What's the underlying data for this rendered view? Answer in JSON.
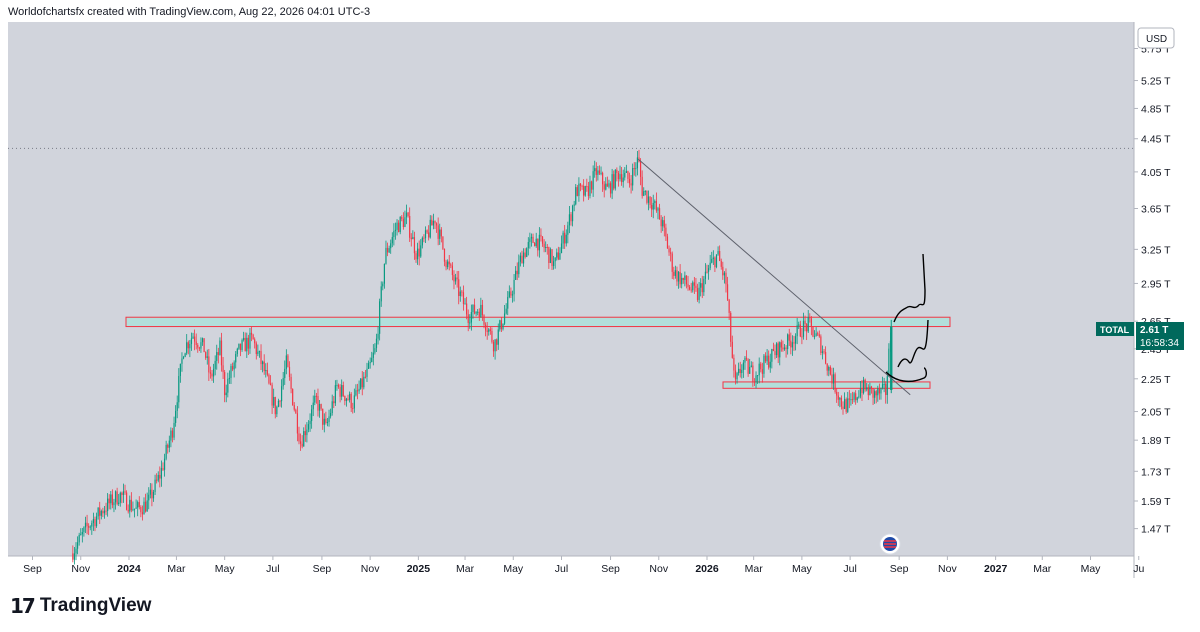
{
  "header": {
    "attribution": "Worldofchartsfx created with TradingView.com, Aug 22, 2026 04:01 UTC-3"
  },
  "brand": {
    "name": "TradingView",
    "mark": "17"
  },
  "colors": {
    "up": "#089981",
    "down": "#f23645",
    "background": "#d1d4dc",
    "zone_fill": "#b2dfdb",
    "zone_border": "#f23645",
    "trendline": "#5d606b",
    "label_bg": "#00695c"
  },
  "chart_data": {
    "type": "candlestick",
    "symbol": "TOTAL",
    "currency": "USD",
    "last_value": "2.61 T",
    "countdown": "16:58:34",
    "y_axis": {
      "scale": "log",
      "ticks": [
        "5.75 T",
        "5.25 T",
        "4.85 T",
        "4.45 T",
        "4.05 T",
        "3.65 T",
        "3.25 T",
        "2.95 T",
        "2.65 T",
        "2.45 T",
        "2.25 T",
        "2.05 T",
        "1.89 T",
        "1.73 T",
        "1.59 T",
        "1.47 T"
      ],
      "range_trillions": [
        1.36,
        6.2
      ]
    },
    "x_axis": {
      "ticks": [
        "Sep",
        "Nov",
        "2024",
        "Mar",
        "May",
        "Jul",
        "Sep",
        "Nov",
        "2025",
        "Mar",
        "May",
        "Jul",
        "Sep",
        "Nov",
        "2026",
        "Mar",
        "May",
        "Jul",
        "Sep",
        "Nov",
        "2027",
        "Mar",
        "May",
        "Ju"
      ],
      "bold": [
        "2024",
        "2025",
        "2026",
        "2027"
      ]
    },
    "price_path_trillions": [
      [
        "2023-10-20",
        1.37
      ],
      [
        "2023-11-10",
        1.48
      ],
      [
        "2023-12-01",
        1.56
      ],
      [
        "2023-12-20",
        1.62
      ],
      [
        "2024-01-10",
        1.55
      ],
      [
        "2024-01-25",
        1.58
      ],
      [
        "2024-02-10",
        1.72
      ],
      [
        "2024-02-25",
        1.95
      ],
      [
        "2024-03-10",
        2.45
      ],
      [
        "2024-03-22",
        2.55
      ],
      [
        "2024-04-05",
        2.45
      ],
      [
        "2024-04-13",
        2.25
      ],
      [
        "2024-04-25",
        2.45
      ],
      [
        "2024-05-01",
        2.18
      ],
      [
        "2024-05-20",
        2.45
      ],
      [
        "2024-06-05",
        2.52
      ],
      [
        "2024-06-20",
        2.3
      ],
      [
        "2024-07-05",
        2.05
      ],
      [
        "2024-07-18",
        2.35
      ],
      [
        "2024-08-05",
        1.88
      ],
      [
        "2024-08-25",
        2.12
      ],
      [
        "2024-09-06",
        1.95
      ],
      [
        "2024-09-20",
        2.2
      ],
      [
        "2024-10-10",
        2.1
      ],
      [
        "2024-10-30",
        2.3
      ],
      [
        "2024-11-08",
        2.45
      ],
      [
        "2024-11-20",
        3.2
      ],
      [
        "2024-12-05",
        3.48
      ],
      [
        "2024-12-17",
        3.55
      ],
      [
        "2024-12-30",
        3.2
      ],
      [
        "2025-01-10",
        3.35
      ],
      [
        "2025-01-22",
        3.55
      ],
      [
        "2025-02-05",
        3.15
      ],
      [
        "2025-02-20",
        2.9
      ],
      [
        "2025-03-05",
        2.7
      ],
      [
        "2025-03-20",
        2.75
      ],
      [
        "2025-04-07",
        2.48
      ],
      [
        "2025-04-25",
        2.8
      ],
      [
        "2025-05-12",
        3.2
      ],
      [
        "2025-05-28",
        3.35
      ],
      [
        "2025-06-12",
        3.25
      ],
      [
        "2025-06-22",
        3.1
      ],
      [
        "2025-07-10",
        3.5
      ],
      [
        "2025-07-20",
        3.85
      ],
      [
        "2025-08-01",
        3.8
      ],
      [
        "2025-08-14",
        4.05
      ],
      [
        "2025-08-28",
        3.85
      ],
      [
        "2025-09-12",
        4.05
      ],
      [
        "2025-09-25",
        3.95
      ],
      [
        "2025-10-06",
        4.2
      ],
      [
        "2025-10-11",
        3.85
      ],
      [
        "2025-10-25",
        3.7
      ],
      [
        "2025-11-05",
        3.5
      ],
      [
        "2025-11-20",
        3.05
      ],
      [
        "2025-12-05",
        2.95
      ],
      [
        "2025-12-20",
        2.85
      ],
      [
        "2026-01-05",
        3.1
      ],
      [
        "2026-01-14",
        3.2
      ],
      [
        "2026-01-25",
        2.95
      ],
      [
        "2026-02-05",
        2.2
      ],
      [
        "2026-02-15",
        2.35
      ],
      [
        "2026-03-01",
        2.28
      ],
      [
        "2026-03-15",
        2.35
      ],
      [
        "2026-04-01",
        2.45
      ],
      [
        "2026-04-15",
        2.5
      ],
      [
        "2026-05-01",
        2.6
      ],
      [
        "2026-05-10",
        2.62
      ],
      [
        "2026-05-25",
        2.48
      ],
      [
        "2026-06-05",
        2.3
      ],
      [
        "2026-06-20",
        2.1
      ],
      [
        "2026-07-01",
        2.08
      ],
      [
        "2026-07-15",
        2.2
      ],
      [
        "2026-08-01",
        2.15
      ],
      [
        "2026-08-15",
        2.17
      ],
      [
        "2026-08-22",
        2.61
      ]
    ],
    "annotations": {
      "resistance_zone_trillions": [
        2.61,
        2.68
      ],
      "support_zone_trillions": [
        2.19,
        2.23
      ],
      "trendline": [
        [
          "2025-10-06",
          4.2
        ],
        [
          "2026-09-15",
          2.15
        ]
      ],
      "dotted_high_trillions": 4.33
    }
  }
}
